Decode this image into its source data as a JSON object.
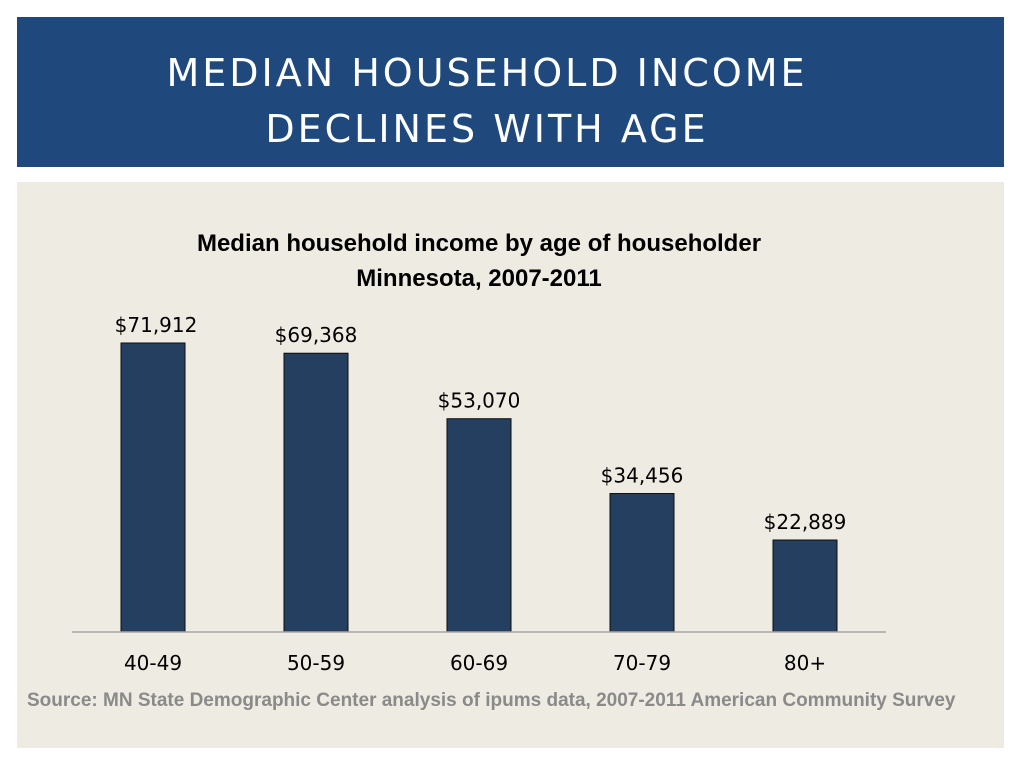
{
  "header": {
    "title": "MEDIAN HOUSEHOLD INCOME\nDECLINES WITH AGE"
  },
  "chart_data": {
    "type": "bar",
    "title": "Median household income by age of householder",
    "subtitle": "Minnesota, 2007-2011",
    "categories": [
      "40-49",
      "50-59",
      "60-69",
      "70-79",
      "80+"
    ],
    "values": [
      71912,
      69368,
      53070,
      34456,
      22889
    ],
    "value_labels": [
      "$71,912",
      "$69,368",
      "$53,070",
      "$34,456",
      "$22,889"
    ],
    "xlabel": "",
    "ylabel": "",
    "ylim": [
      0,
      71912
    ],
    "grid": false,
    "bar_color": "#243f60",
    "bar_stroke": "#0d0d0d"
  },
  "source": {
    "text": "Source: MN State Demographic Center analysis of ipums data, 2007-2011 American Community Survey"
  }
}
